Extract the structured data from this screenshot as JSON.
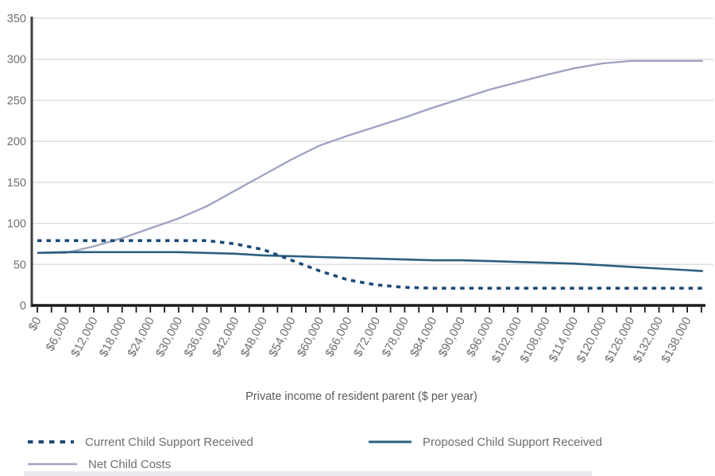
{
  "chart_data": {
    "type": "line",
    "title": "",
    "xlabel": "Private income of resident parent ($ per year)",
    "ylabel": "",
    "ylim": [
      0,
      350
    ],
    "yticks": [
      0,
      50,
      100,
      150,
      200,
      250,
      300,
      350
    ],
    "grid": true,
    "legend_position": "bottom",
    "categories": [
      "$0",
      "$6,000",
      "$12,000",
      "$18,000",
      "$24,000",
      "$30,000",
      "$36,000",
      "$42,000",
      "$48,000",
      "$54,000",
      "$60,000",
      "$66,000",
      "$72,000",
      "$78,000",
      "$84,000",
      "$90,000",
      "$96,000",
      "$102,000",
      "$108,000",
      "$114,000",
      "$120,000",
      "$126,000",
      "$132,000",
      "$138,000"
    ],
    "series": [
      {
        "name": "Current Child Support Received",
        "style": "dotted",
        "color": "#1c4a75",
        "values": [
          79,
          79,
          79,
          79,
          79,
          79,
          79,
          75,
          68,
          55,
          42,
          31,
          25,
          22,
          21,
          21,
          21,
          21,
          21,
          21,
          21,
          21,
          21,
          21
        ]
      },
      {
        "name": "Proposed Child Support Received",
        "style": "solid",
        "color": "#2c5f80",
        "values": [
          64,
          65,
          65,
          65,
          65,
          65,
          64,
          63,
          61,
          60,
          59,
          58,
          57,
          56,
          55,
          55,
          54,
          53,
          52,
          51,
          49,
          47,
          45,
          43
        ]
      },
      {
        "name": "Net Child Costs",
        "style": "solid-light",
        "color": "#a0a4c2",
        "values": [
          64,
          64,
          72,
          82,
          94,
          106,
          121,
          140,
          159,
          178,
          195,
          207,
          218,
          229,
          241,
          252,
          263,
          272,
          281,
          289,
          295,
          298,
          298,
          298
        ]
      }
    ],
    "colors": {
      "gridline": "#d9d9d9",
      "y_axis": "#3f3f3f",
      "x_axis": "#1a1a1a",
      "tick": "#1a1a1a",
      "label_text": "#6d6e71"
    }
  }
}
